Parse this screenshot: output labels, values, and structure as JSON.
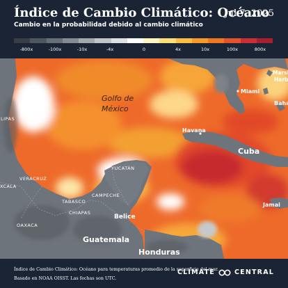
{
  "header": {
    "title": "Índice de Cambio Climático: Océano",
    "date": "Jul 7, 2025",
    "subtitle": "Cambio en la probabilidad debido al cambio climático"
  },
  "legend": {
    "ticks": [
      "-800x",
      "-100x",
      "-10x",
      "-4x",
      "0",
      "4x",
      "10x",
      "100x",
      "800x"
    ],
    "colors": [
      "#3a3f45",
      "#50565d",
      "#686e75",
      "#858b91",
      "#a3a8ad",
      "#c2c6ca",
      "#dee1e4",
      "#ffffff",
      "#fff6c4",
      "#fde07b",
      "#fbbd44",
      "#f8992c",
      "#f27723",
      "#e4532b",
      "#cc2f33",
      "#a81f2f"
    ]
  },
  "map": {
    "labels": {
      "gulf": "Golfo de",
      "gulf2": "México",
      "miami": "Miami",
      "havana": "Havana",
      "cuba": "Cuba",
      "marsh": "Marsh",
      "harbour": "Harbou",
      "bahamas": "Baha",
      "lipas": "LIPAS",
      "yucatan": "YUCATÁN",
      "veracruz": "VERACRUZ",
      "tabasco": "TABASCO",
      "campeche": "CAMPECHE",
      "chiapas": "CHIAPAS",
      "oaxaca": "OAXACA",
      "xcala": "XCALA",
      "belice": "Belice",
      "guatemala": "Guatemala",
      "honduras": "Honduras",
      "jamaica": "Jamai"
    }
  },
  "footer": {
    "line1": "Índice de Cambio Climático: Océano para temperaturas promedio de la superficie del mar.",
    "line2": "Basado en NOAA OISST. Las fechas son UTC.",
    "brand": "CLIMATE",
    "brand2": "CENTRAL"
  }
}
